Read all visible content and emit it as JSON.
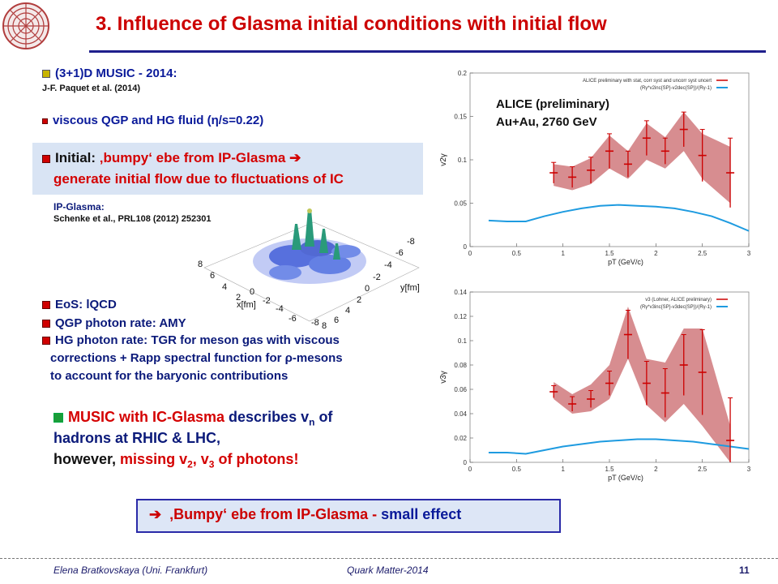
{
  "slide": {
    "title": "3. Influence of Glasma initial conditions with initial flow",
    "music_title": "(3+1)D MUSIC - 2014:",
    "music_ref": "J-F. Paquet  et al. (2014)",
    "viscous": "viscous QGP and HG fluid (η/s=0.22)",
    "initial_label": "Initial: ",
    "initial_text": "‚bumpy‘ ebe from IP-Glasma ➔",
    "initial_line2": "generate initial flow due to fluctuations of IC",
    "ipglasma_label": "IP-Glasma:",
    "ipglasma_ref": "Schenke et al., PRL108 (2012) 252301",
    "eos": "EoS: lQCD",
    "qgp_rate": "QGP photon rate: AMY",
    "hg_rate_1": "HG photon rate: TGR for meson gas  with viscous",
    "hg_rate_2": "corrections  + Rapp spectral function for ρ-mesons",
    "hg_rate_3": "to account for the baryonic contributions",
    "music_desc_1a": "MUSIC with IC-Glasma ",
    "music_desc_1b": "describes v",
    "music_desc_1c": "n",
    "music_desc_1d": " of",
    "music_desc_2a": "hadrons",
    "music_desc_2b": " at RHIC & LHC,",
    "music_desc_3a": "however, ",
    "music_desc_3b": "missing  v",
    "music_desc_3c": "2",
    "music_desc_3d": ", v",
    "music_desc_3e": "3",
    "music_desc_3f": "  of photons!",
    "conclusion": "‚Bumpy‘ ebe from IP-Glasma - ",
    "conclusion_b": "small effect",
    "footer_left": "Elena Bratkovskaya  (Uni. Frankfurt)",
    "footer_mid": "Quark Matter-2014",
    "footer_page": "11",
    "alice_label_1": "ALICE (preliminary)",
    "alice_label_2": "Au+Au, 2760 GeV"
  },
  "surface_plot": {
    "x_axis_label": "x[fm]",
    "y_axis_label": "y[fm]",
    "x_ticks": [
      "8",
      "6",
      "4",
      "2",
      "0",
      "-2",
      "-4",
      "-6",
      "-8"
    ],
    "y_ticks": [
      "-8",
      "-6",
      "-4",
      "-2",
      "0",
      "2",
      "4",
      "6",
      "8"
    ]
  },
  "colors": {
    "title": "#cc0000",
    "band": "#c9676b",
    "line": "#1e9be0",
    "highlight": "#d9e4f4"
  },
  "chart_data": [
    {
      "type": "line",
      "ylabel": "v2γ",
      "xlabel": "pT (GeV/c)",
      "xlim": [
        0,
        3
      ],
      "ylim": [
        0,
        0.2
      ],
      "x_ticks": [
        "0",
        "0.5",
        "1",
        "1.5",
        "2",
        "2.5",
        "3"
      ],
      "y_ticks": [
        "0",
        "0.05",
        "0.1",
        "0.15",
        "0.2"
      ],
      "legend": "ALICE preliminary with stat, corr syst and uncorr syst uncert",
      "legend_formula": "(Rγ*v2inc{SP}-v2dec{SP})/(Rγ-1)",
      "data_x": [
        0.9,
        1.1,
        1.3,
        1.5,
        1.7,
        1.9,
        2.1,
        2.3,
        2.5,
        2.8
      ],
      "data_y": [
        0.085,
        0.08,
        0.088,
        0.11,
        0.095,
        0.125,
        0.11,
        0.135,
        0.105,
        0.085
      ],
      "data_err": [
        0.012,
        0.012,
        0.015,
        0.02,
        0.015,
        0.02,
        0.015,
        0.02,
        0.03,
        0.04
      ],
      "band_x": [
        0.9,
        1.1,
        1.3,
        1.5,
        1.7,
        1.9,
        2.1,
        2.3,
        2.5,
        2.8
      ],
      "band_lo": [
        0.07,
        0.065,
        0.072,
        0.09,
        0.078,
        0.1,
        0.09,
        0.11,
        0.078,
        0.05
      ],
      "band_hi": [
        0.095,
        0.092,
        0.102,
        0.128,
        0.11,
        0.142,
        0.126,
        0.155,
        0.13,
        0.115
      ],
      "theory_x": [
        0.2,
        0.4,
        0.6,
        0.8,
        1.0,
        1.2,
        1.4,
        1.6,
        1.8,
        2.0,
        2.2,
        2.4,
        2.6,
        2.8,
        3.0
      ],
      "theory_y": [
        0.03,
        0.029,
        0.029,
        0.035,
        0.04,
        0.044,
        0.047,
        0.048,
        0.047,
        0.046,
        0.044,
        0.04,
        0.035,
        0.027,
        0.018
      ]
    },
    {
      "type": "line",
      "ylabel": "v3γ",
      "xlabel": "pT (GeV/c)",
      "xlim": [
        0,
        3
      ],
      "ylim": [
        0,
        0.14
      ],
      "x_ticks": [
        "0",
        "0.5",
        "1",
        "1.5",
        "2",
        "2.5",
        "3"
      ],
      "y_ticks": [
        "0",
        "0.02",
        "0.04",
        "0.06",
        "0.08",
        "0.1",
        "0.12",
        "0.14"
      ],
      "legend": "v3 (Lohner, ALICE preliminary)",
      "legend_formula": "(Rγ*v3inc{SP}-v3dec{SP})/(Rγ-1)",
      "data_x": [
        0.9,
        1.1,
        1.3,
        1.5,
        1.7,
        1.9,
        2.1,
        2.3,
        2.5,
        2.8
      ],
      "data_y": [
        0.058,
        0.048,
        0.052,
        0.065,
        0.105,
        0.065,
        0.057,
        0.08,
        0.074,
        0.018
      ],
      "data_err": [
        0.005,
        0.006,
        0.007,
        0.01,
        0.02,
        0.018,
        0.02,
        0.025,
        0.035,
        0.035
      ],
      "band_x": [
        0.9,
        1.1,
        1.3,
        1.5,
        1.7,
        1.9,
        2.1,
        2.3,
        2.5,
        2.8
      ],
      "band_lo": [
        0.052,
        0.04,
        0.042,
        0.052,
        0.085,
        0.047,
        0.033,
        0.048,
        0.03,
        0.0
      ],
      "band_hi": [
        0.066,
        0.056,
        0.064,
        0.08,
        0.128,
        0.085,
        0.082,
        0.11,
        0.11,
        0.03
      ],
      "theory_x": [
        0.2,
        0.4,
        0.6,
        0.8,
        1.0,
        1.2,
        1.4,
        1.6,
        1.8,
        2.0,
        2.2,
        2.4,
        2.6,
        2.8,
        3.0
      ],
      "theory_y": [
        0.008,
        0.008,
        0.007,
        0.01,
        0.013,
        0.015,
        0.017,
        0.018,
        0.019,
        0.019,
        0.018,
        0.017,
        0.015,
        0.013,
        0.011
      ]
    }
  ]
}
